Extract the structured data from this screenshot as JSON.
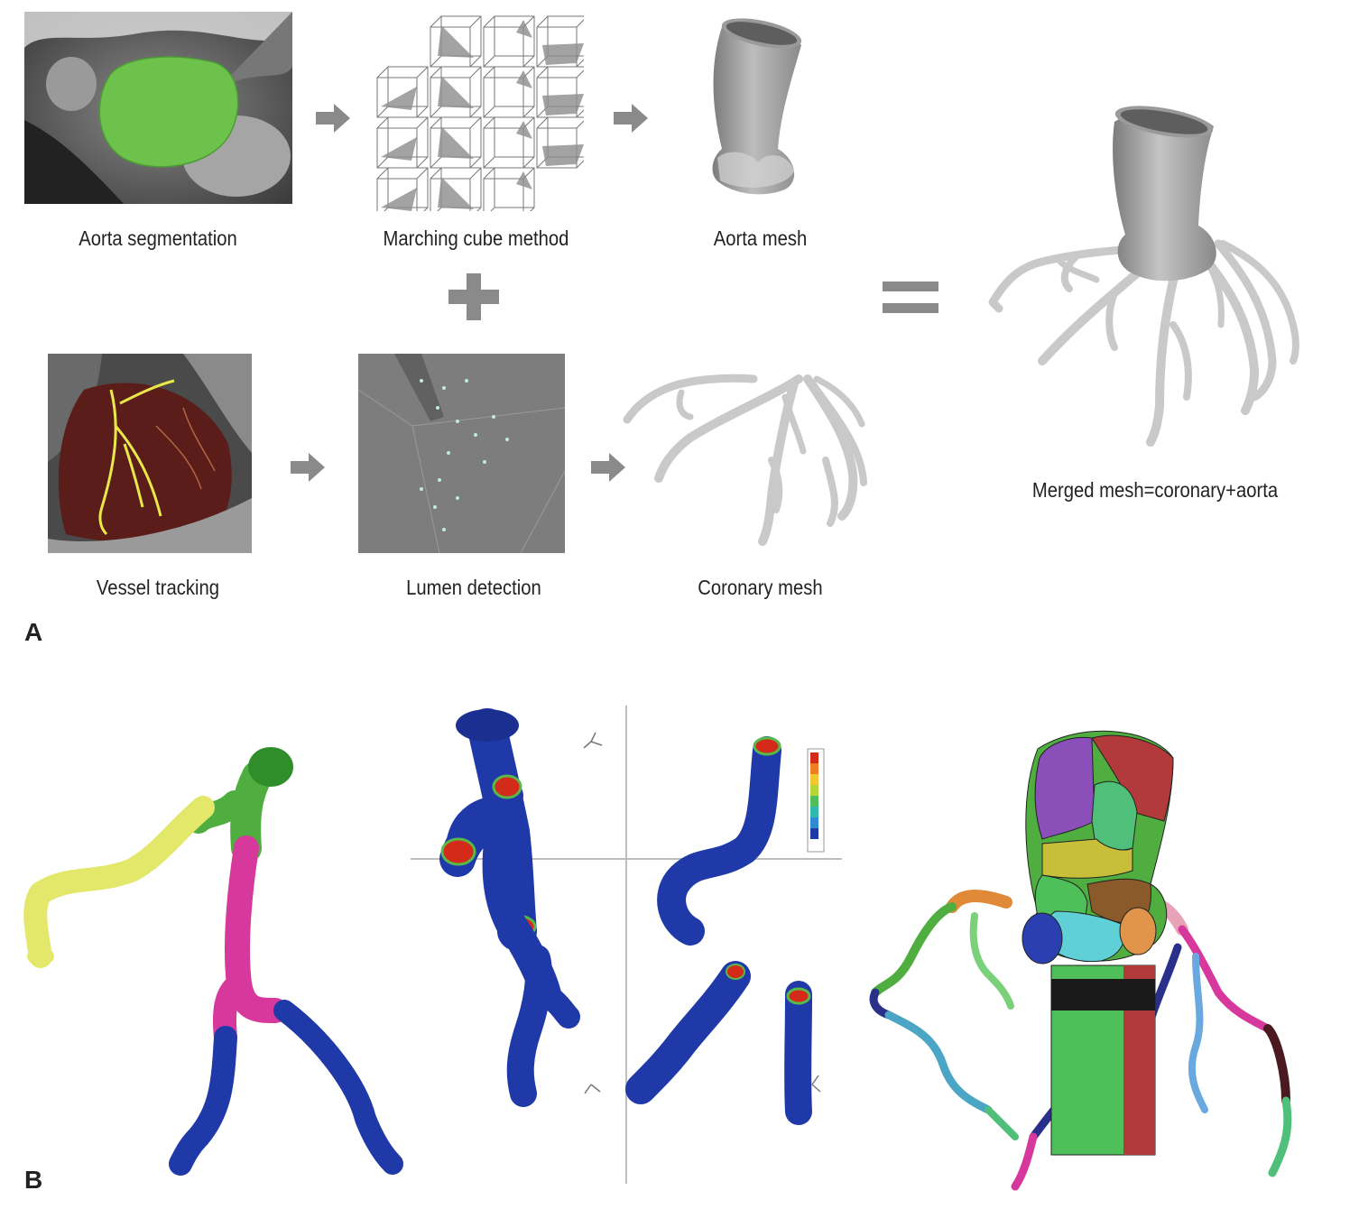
{
  "panel_a": {
    "letter": "A",
    "captions": {
      "aorta_segmentation": "Aorta segmentation",
      "marching_cube": "Marching cube method",
      "aorta_mesh": "Aorta mesh",
      "vessel_tracking": "Vessel tracking",
      "lumen_detection": "Lumen detection",
      "coronary_mesh": "Coronary mesh",
      "merged_mesh": "Merged mesh=coronary+aorta"
    }
  },
  "panel_b": {
    "letter": "B"
  },
  "colors": {
    "arrow": "#8a8a8a",
    "segmentation_green": "#6cc24a",
    "mesh_gray": "#b9b9b9",
    "vessel_blue": "#1f3aa8",
    "vessel_magenta": "#d6399b",
    "vessel_yellow": "#e3e86a",
    "vessel_green": "#58b84a",
    "hotspot_red": "#d42a1a"
  }
}
